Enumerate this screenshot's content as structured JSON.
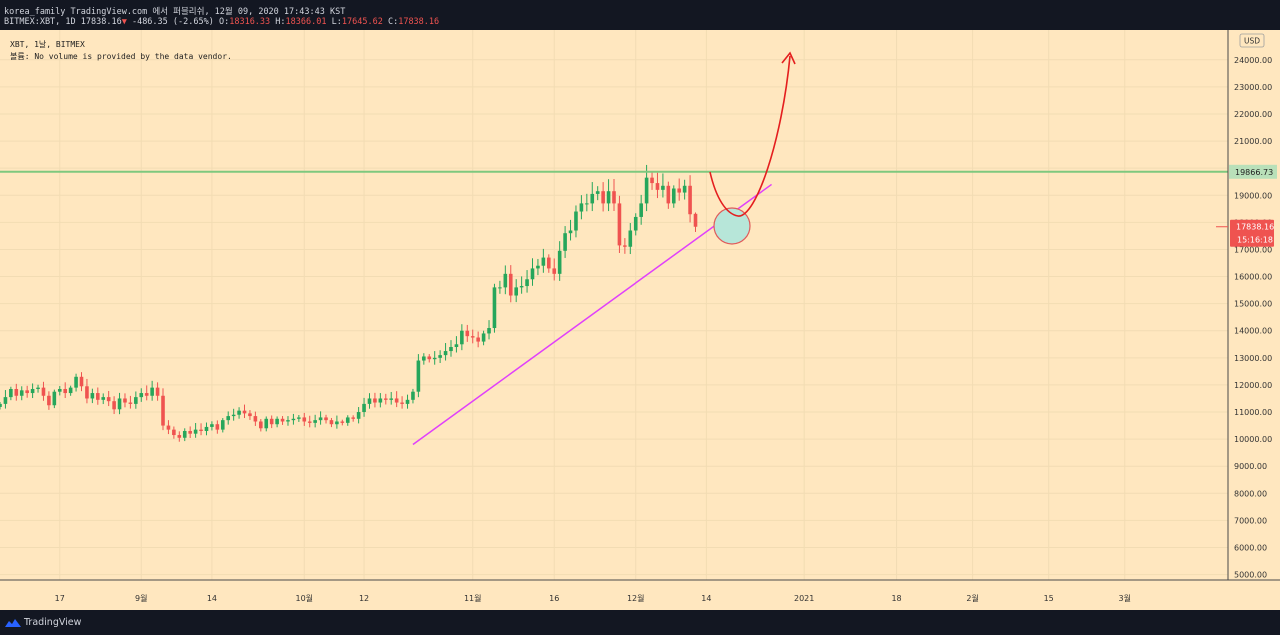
{
  "header": {
    "attribution": "korea_family TradingView.com 에서 퍼블리쉬, 12월 09, 2020 17:43:43 KST",
    "symbol_line": "BITMEX:XBT, 1D 17838.16",
    "change_arrow": "▼",
    "change_text": "-486.35 (-2.65%)",
    "o_label": "O:",
    "o_value": "18316.33",
    "h_label": "H:",
    "h_value": "18366.01",
    "l_label": "L:",
    "l_value": "17645.62",
    "c_label": "C:",
    "c_value": "17838.16"
  },
  "legend": {
    "line1": "XBT, 1날, BITMEX",
    "line2": "볼륨: No volume is provided by the data vendor."
  },
  "footer": {
    "brand": "TradingView"
  },
  "colors": {
    "background": "#ffe7bf",
    "up": "#26a65b",
    "down": "#ef5350",
    "resistance": "#7ec87e",
    "trendline": "#e040fb",
    "arrow": "#e41e1e",
    "ellipse_fill": "#b7e6d9",
    "ellipse_stroke": "#e05a5a"
  },
  "chart_data": {
    "type": "candlestick",
    "currency": "USD",
    "ylim": [
      4800,
      25100
    ],
    "y_ticks": [
      5000,
      6000,
      7000,
      8000,
      9000,
      10000,
      11000,
      12000,
      13000,
      14000,
      15000,
      16000,
      17000,
      18000,
      19000,
      20000,
      21000,
      22000,
      23000,
      24000
    ],
    "xlim": [
      "2020-08-06",
      "2021-03-20"
    ],
    "x_ticks": [
      {
        "date": "2020-08-17",
        "label": "17"
      },
      {
        "date": "2020-09-01",
        "label": "9월"
      },
      {
        "date": "2020-09-14",
        "label": "14"
      },
      {
        "date": "2020-10-01",
        "label": "10월"
      },
      {
        "date": "2020-10-12",
        "label": "12"
      },
      {
        "date": "2020-11-01",
        "label": "11월"
      },
      {
        "date": "2020-11-16",
        "label": "16"
      },
      {
        "date": "2020-12-01",
        "label": "12월"
      },
      {
        "date": "2020-12-14",
        "label": "14"
      },
      {
        "date": "2021-01-01",
        "label": "2021"
      },
      {
        "date": "2021-01-18",
        "label": "18"
      },
      {
        "date": "2021-02-01",
        "label": "2월"
      },
      {
        "date": "2021-02-15",
        "label": "15"
      },
      {
        "date": "2021-03-01",
        "label": "3월"
      }
    ],
    "start_date": "2020-08-06",
    "closes": [
      11300,
      11550,
      11850,
      11600,
      11800,
      11700,
      11850,
      11900,
      11600,
      11250,
      11750,
      11850,
      11700,
      11900,
      12300,
      11950,
      11500,
      11700,
      11450,
      11550,
      11400,
      11100,
      11500,
      11350,
      11300,
      11550,
      11700,
      11600,
      11900,
      11600,
      10500,
      10350,
      10150,
      10050,
      10300,
      10200,
      10350,
      10300,
      10450,
      10550,
      10350,
      10700,
      10850,
      10900,
      11050,
      10950,
      10850,
      10650,
      10400,
      10750,
      10550,
      10750,
      10650,
      10700,
      10750,
      10800,
      10650,
      10600,
      10700,
      10800,
      10700,
      10550,
      10650,
      10600,
      10800,
      10750,
      11000,
      11300,
      11500,
      11350,
      11500,
      11450,
      11500,
      11350,
      11300,
      11450,
      11750,
      12900,
      13050,
      12950,
      13000,
      13100,
      13250,
      13400,
      13500,
      14000,
      13800,
      13750,
      13600,
      13900,
      14100,
      15600,
      15600,
      16100,
      15300,
      15600,
      15650,
      15900,
      16300,
      16400,
      16700,
      16300,
      16100,
      16950,
      17600,
      17700,
      18400,
      18700,
      18700,
      19050,
      19150,
      18700,
      19150,
      18700,
      17150,
      17100,
      17700,
      18200,
      18700,
      19650,
      19450,
      19200,
      19350,
      18700,
      19250,
      19100,
      19350,
      18300,
      17838.16
    ],
    "last_ohlc": {
      "open": 18316.33,
      "high": 18366.01,
      "low": 17645.62,
      "close": 17838.16
    },
    "resistance_level": 19866.73,
    "resistance_label": "19866.73",
    "last_price_label": "17838.16",
    "countdown_label": "15:16:18",
    "trendline": {
      "from": {
        "date": "2020-10-21",
        "value": 9800
      },
      "to": {
        "date": "2020-12-26",
        "value": 19400
      }
    }
  }
}
